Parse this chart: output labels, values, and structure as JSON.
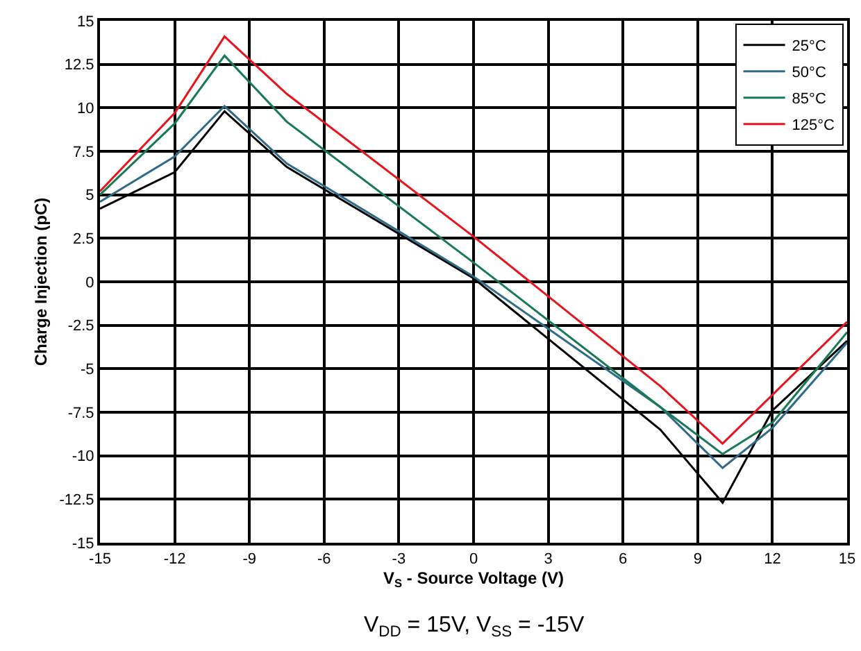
{
  "chart_data": {
    "type": "line",
    "xlabel": "V$_{S}$ - Source Voltage (V)",
    "ylabel": "Charge Injection (pC)",
    "x": [
      -15,
      -12,
      -10,
      -7.5,
      0,
      7.5,
      10,
      12,
      15
    ],
    "series": [
      {
        "name": "25°C",
        "color": "#000000",
        "values": [
          4.2,
          6.3,
          9.8,
          6.6,
          0.2,
          -8.5,
          -12.7,
          -7.4,
          -3.4
        ]
      },
      {
        "name": "50°C",
        "color": "#2e6a8a",
        "values": [
          4.6,
          7.2,
          10.1,
          6.8,
          0.3,
          -7.2,
          -10.7,
          -8.4,
          -3.5
        ]
      },
      {
        "name": "85°C",
        "color": "#167a55",
        "values": [
          5.0,
          9.1,
          13.0,
          9.2,
          1.1,
          -7.2,
          -9.9,
          -8.1,
          -2.9
        ]
      },
      {
        "name": "125°C",
        "color": "#e8141c",
        "values": [
          5.2,
          9.7,
          14.1,
          10.8,
          2.6,
          -6.0,
          -9.3,
          null,
          -2.3
        ]
      }
    ],
    "xlim": [
      -15,
      15
    ],
    "xticks": [
      -15,
      -12,
      -9,
      -6,
      -3,
      0,
      3,
      6,
      9,
      12,
      15
    ],
    "ylim": [
      -15,
      15
    ],
    "yticks": [
      -15,
      -12.5,
      -10,
      -7.5,
      -5,
      -2.5,
      0,
      2.5,
      5,
      7.5,
      10,
      12.5,
      15
    ],
    "grid": true,
    "legend": "top right",
    "marker": "none",
    "line_style": "solid",
    "annotations": [
      "V$_{DD}$ = 15V, V$_{SS}$ = -15V"
    ]
  }
}
